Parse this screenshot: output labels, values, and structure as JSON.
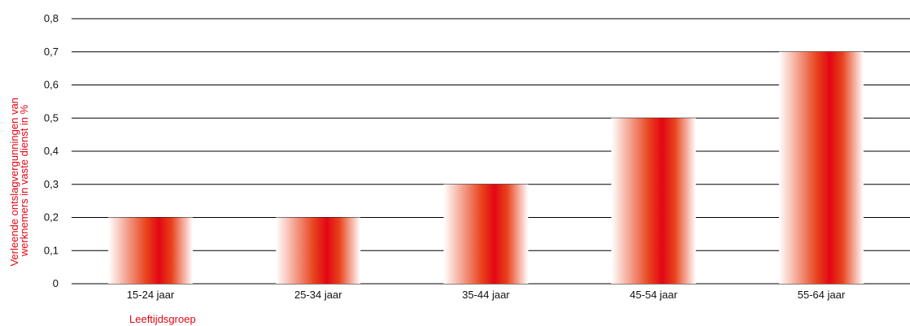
{
  "chart_data": {
    "type": "bar",
    "categories": [
      "15-24 jaar",
      "25-34 jaar",
      "35-44 jaar",
      "45-54 jaar",
      "55-64 jaar"
    ],
    "values": [
      0.2,
      0.2,
      0.3,
      0.5,
      0.7
    ],
    "ylim": [
      0,
      0.8
    ],
    "yticks": [
      "0",
      "0,1",
      "0,2",
      "0,3",
      "0,4",
      "0,5",
      "0,6",
      "0,7",
      "0,8"
    ],
    "ylabel_lines": [
      "Verleende ontslagvergunningen van",
      "werknemers in vaste dienst  in %"
    ],
    "xlabel": "Leeftijdsgroep",
    "grid": true,
    "colors": {
      "bar_core": "#e30613",
      "bar_edge": "#ffffff",
      "label": "#e30613",
      "grid": "#000000"
    }
  }
}
